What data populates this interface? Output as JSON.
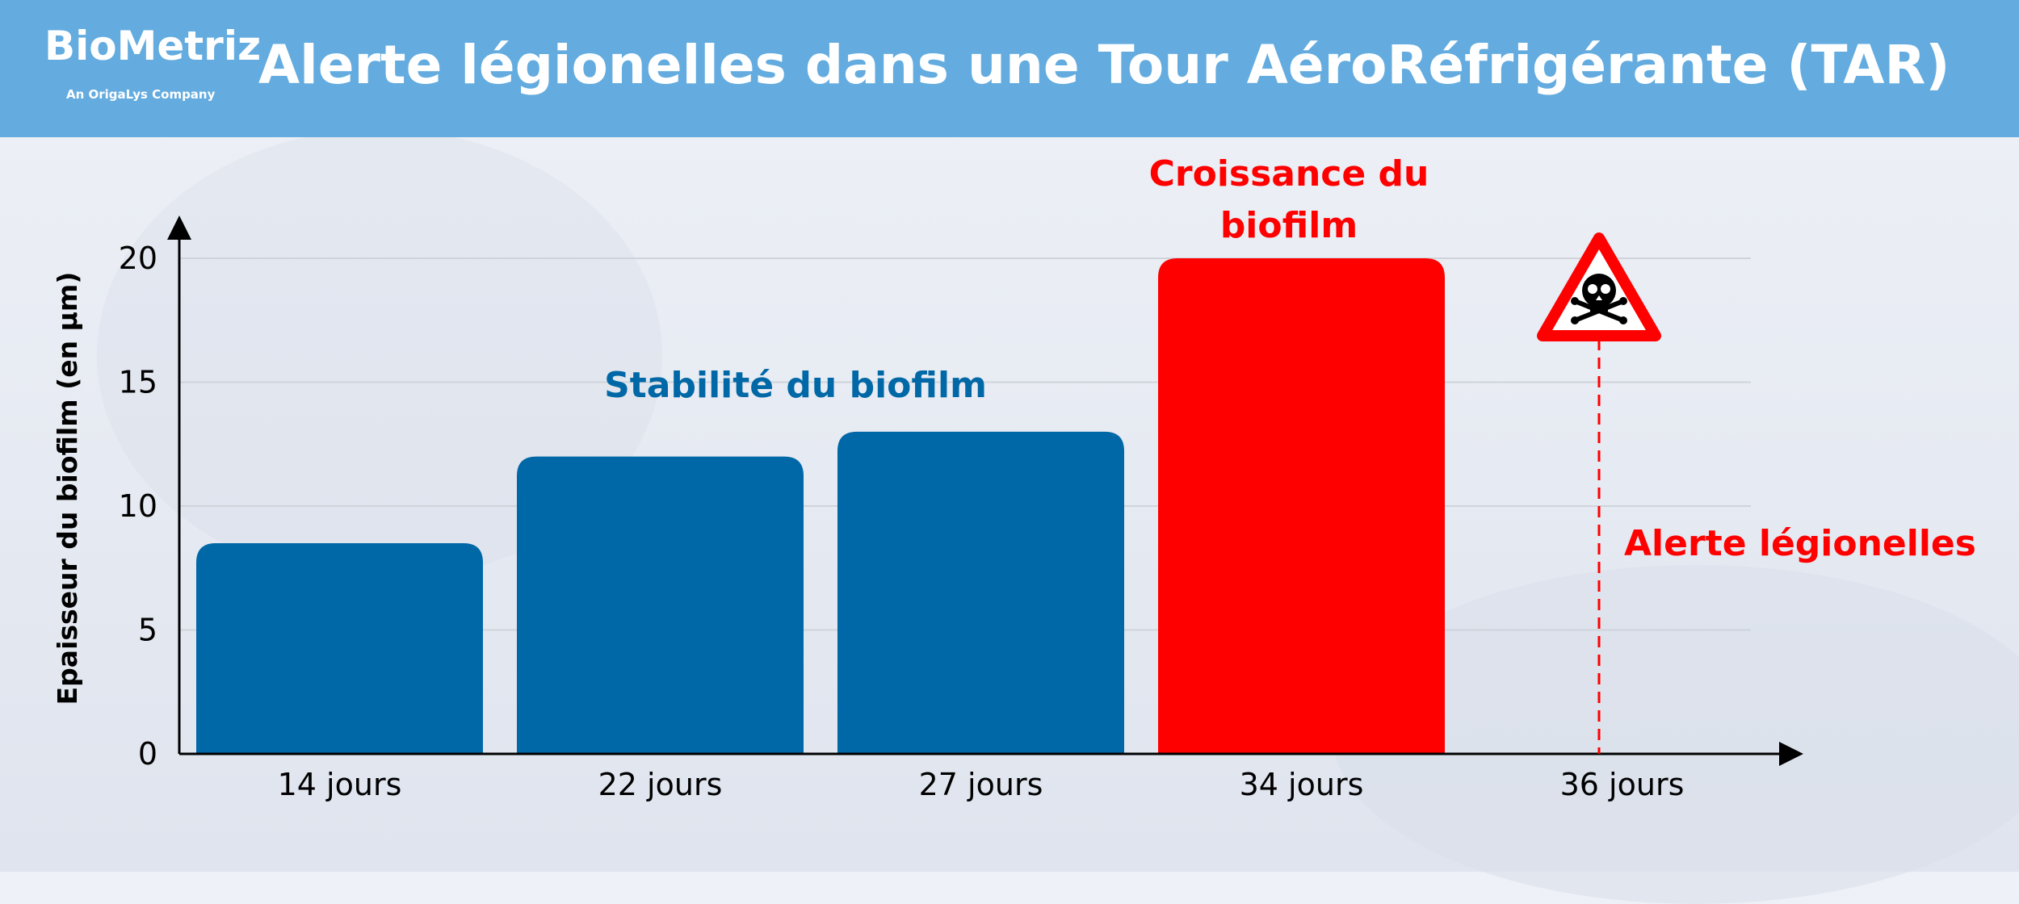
{
  "header": {
    "logo_name": "BioMetriz",
    "logo_sub": "An OrigaLys Company",
    "title": "Alerte légionelles dans une Tour AéroRéfrigérante (TAR)"
  },
  "colors": {
    "header_bg": "#64acdf",
    "bar_blue": "#0068a6",
    "bar_red": "#ff0000",
    "alert_red": "#ff0000"
  },
  "chart_data": {
    "type": "bar",
    "title": "Alerte légionelles dans une Tour AéroRéfrigérante (TAR)",
    "categories": [
      "14 jours",
      "22 jours",
      "27 jours",
      "34 jours",
      "36 jours"
    ],
    "values": [
      8.5,
      12,
      13,
      20,
      null
    ],
    "bar_colors": [
      "#0068a6",
      "#0068a6",
      "#0068a6",
      "#ff0000",
      null
    ],
    "ylabel": "Epaisseur du biofilm (en µm)",
    "xlabel": "",
    "ylim": [
      0,
      21
    ],
    "yticks": [
      0,
      5,
      10,
      15,
      20
    ],
    "grid": true,
    "annotations": {
      "stability": "Stabilité du biofilm",
      "growth_line1": "Croissance du",
      "growth_line2": "biofilm",
      "alert": "Alerte légionelles",
      "alert_icon": "skull-warning-icon"
    }
  }
}
